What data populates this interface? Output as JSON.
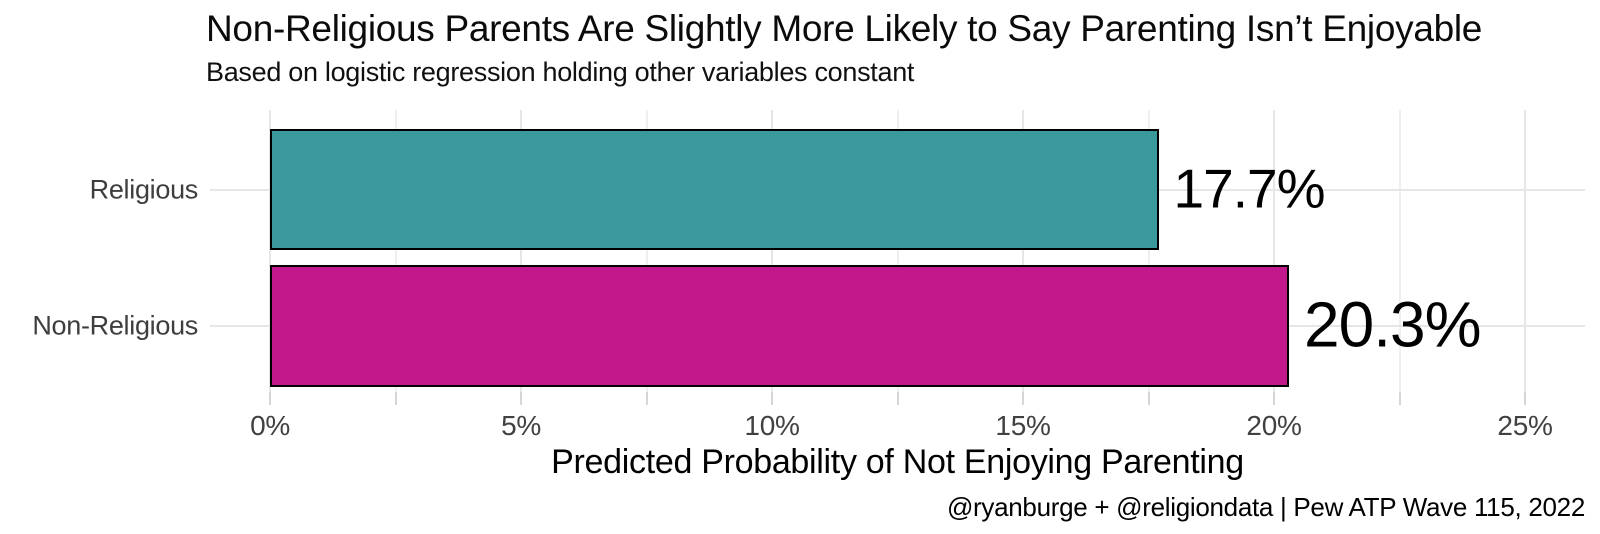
{
  "chart_data": {
    "type": "bar",
    "orientation": "horizontal",
    "title": "Non-Religious Parents Are Slightly More Likely to Say Parenting Isn’t Enjoyable",
    "subtitle": "Based on logistic regression holding other variables constant",
    "xlabel": "Predicted Probability of Not Enjoying Parenting",
    "ylabel": "",
    "caption": "@ryanburge + @religiondata | Pew ATP Wave 115, 2022",
    "categories": [
      "Religious",
      "Non-Religious"
    ],
    "values": [
      17.7,
      20.3
    ],
    "value_labels": [
      "17.7%",
      "20.3%"
    ],
    "bar_colors": [
      "#3A9A9B",
      "#C2188C"
    ],
    "bar_outline_color": "#000000",
    "xlim": [
      0,
      25
    ],
    "x_ticks": [
      0,
      5,
      10,
      15,
      20,
      25
    ],
    "x_tick_labels": [
      "0%",
      "5%",
      "10%",
      "15%",
      "20%",
      "25%"
    ],
    "x_minor_ticks": [
      2.5,
      7.5,
      12.5,
      17.5,
      22.5
    ],
    "grid": true,
    "legend": "none",
    "background_color": "#FFFFFF"
  }
}
